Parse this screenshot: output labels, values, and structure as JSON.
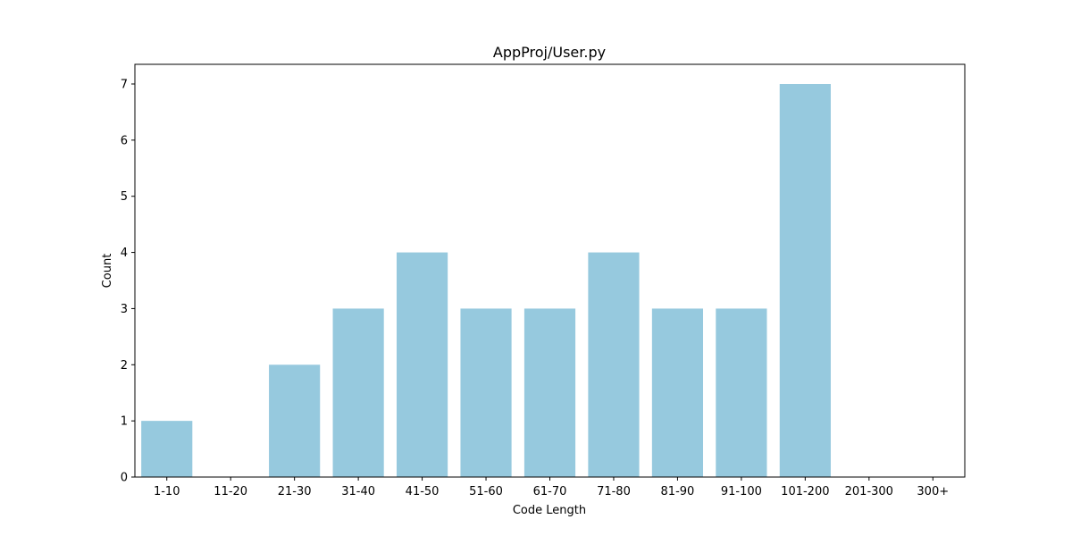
{
  "chart_data": {
    "type": "bar",
    "title": "AppProj/User.py",
    "xlabel": "Code Length",
    "ylabel": "Count",
    "categories": [
      "1-10",
      "11-20",
      "21-30",
      "31-40",
      "41-50",
      "51-60",
      "61-70",
      "71-80",
      "81-90",
      "91-100",
      "101-200",
      "201-300",
      "300+"
    ],
    "values": [
      1,
      0,
      2,
      3,
      4,
      3,
      3,
      4,
      3,
      3,
      7,
      0,
      0
    ],
    "ylim": [
      0,
      7.35
    ],
    "yticks": [
      0,
      1,
      2,
      3,
      4,
      5,
      6,
      7
    ],
    "bar_color": "#96c9de",
    "grid": false,
    "legend": "none"
  }
}
